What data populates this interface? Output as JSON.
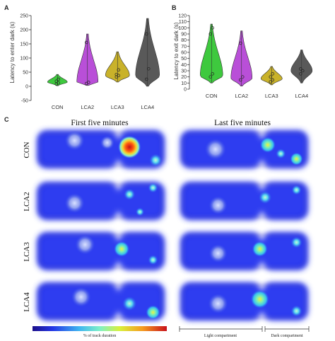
{
  "chart_data": [
    {
      "panel": "A",
      "type": "violin",
      "ylabel": "Latency to enter dark (s)",
      "ylim": [
        -50,
        250
      ],
      "yticks": [
        -50,
        0,
        50,
        100,
        150,
        200,
        250
      ],
      "categories": [
        "CON",
        "LCA2",
        "LCA3",
        "LCA4"
      ],
      "colors": [
        "#3ec93e",
        "#b94fd8",
        "#c9b22a",
        "#595959"
      ],
      "series": [
        {
          "category": "CON",
          "min": 2,
          "max": 42,
          "peak": 15,
          "width": 14,
          "points": [
            8,
            12,
            18,
            25
          ]
        },
        {
          "category": "LCA2",
          "min": 3,
          "max": 185,
          "peak": 15,
          "width": 15,
          "points": [
            10,
            14,
            155
          ]
        },
        {
          "category": "LCA3",
          "min": 15,
          "max": 122,
          "peak": 38,
          "width": 17,
          "points": [
            33,
            38,
            42,
            58
          ]
        },
        {
          "category": "LCA4",
          "min": 0,
          "max": 240,
          "peak": 38,
          "width": 17,
          "points": [
            25,
            62,
            185
          ]
        }
      ]
    },
    {
      "panel": "B",
      "type": "violin",
      "ylabel": "Latency to exit dark (s)",
      "ylim": [
        0,
        120
      ],
      "yticks": [
        0,
        10,
        20,
        30,
        40,
        50,
        60,
        70,
        80,
        90,
        100,
        110,
        120
      ],
      "categories": [
        "CON",
        "LCA2",
        "LCA3",
        "LCA4"
      ],
      "colors": [
        "#3ec93e",
        "#b94fd8",
        "#c9b22a",
        "#595959"
      ],
      "series": [
        {
          "category": "CON",
          "min": 10,
          "max": 106,
          "peak": 22,
          "width": 16,
          "points": [
            20,
            25,
            90,
            100
          ]
        },
        {
          "category": "LCA2",
          "min": 5,
          "max": 95,
          "peak": 18,
          "width": 15,
          "points": [
            15,
            20,
            75
          ]
        },
        {
          "category": "LCA3",
          "min": 7,
          "max": 37,
          "peak": 17,
          "width": 15,
          "points": [
            12,
            15,
            20,
            25
          ]
        },
        {
          "category": "LCA4",
          "min": 10,
          "max": 64,
          "peak": 30,
          "width": 15,
          "points": [
            25,
            30,
            33
          ]
        }
      ]
    },
    {
      "panel": "C",
      "type": "heatmap",
      "columns": [
        "First five minutes",
        "Last five minutes"
      ],
      "rows": [
        "CON",
        "LCA2",
        "LCA3",
        "LCA4"
      ],
      "colorbar_label": "% of track duration",
      "compartments": [
        "Light compartment",
        "Dark compartment"
      ]
    }
  ],
  "panel_letters": [
    "A",
    "B",
    "C"
  ]
}
